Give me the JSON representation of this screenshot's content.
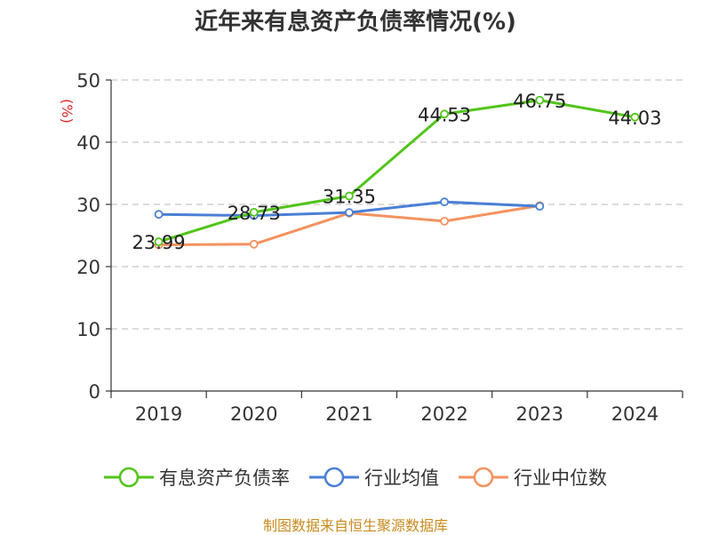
{
  "chart_data": {
    "type": "line",
    "title": "近年来有息资产负债率情况(%)",
    "ylabel": "(%)",
    "xlabel": "",
    "categories": [
      "2019",
      "2020",
      "2021",
      "2022",
      "2023",
      "2024"
    ],
    "ylim": [
      0,
      50
    ],
    "yticks": [
      0,
      10,
      20,
      30,
      40,
      50
    ],
    "grid": true,
    "legend_position": "bottom",
    "series": [
      {
        "name": "有息资产负债率",
        "color": "#52c41a",
        "values": [
          23.99,
          28.73,
          31.35,
          44.53,
          46.75,
          44.03
        ],
        "show_labels": true
      },
      {
        "name": "行业均值",
        "color": "#4a7fd6",
        "values": [
          28.4,
          28.2,
          28.7,
          30.4,
          29.7,
          null
        ],
        "show_labels": false
      },
      {
        "name": "行业中位数",
        "color": "#f4925f",
        "values": [
          23.5,
          23.6,
          28.6,
          27.3,
          29.8,
          null
        ],
        "show_labels": false
      }
    ],
    "source": "制图数据来自恒生聚源数据库"
  }
}
